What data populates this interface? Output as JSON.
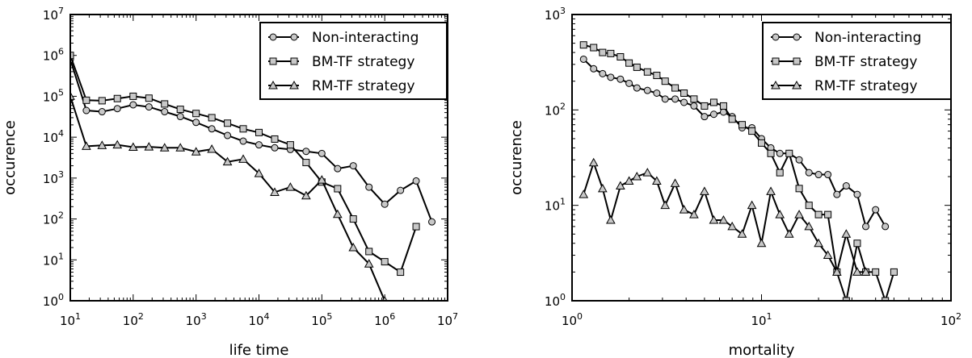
{
  "chart_data": [
    {
      "type": "line",
      "xlabel": "life time",
      "ylabel": "occurence",
      "xscale": "log",
      "yscale": "log",
      "xlim": [
        10,
        10000000
      ],
      "ylim": [
        1,
        10000000
      ],
      "x_tick_exponents": [
        "1",
        "2",
        "3",
        "4",
        "5",
        "6",
        "7"
      ],
      "y_tick_exponents": [
        "0",
        "1",
        "2",
        "3",
        "4",
        "5",
        "6",
        "7"
      ],
      "tick_base": "10",
      "legend_position": "top-right",
      "series": [
        {
          "name": "Non-interacting",
          "marker": "circle",
          "x": [
            10,
            18,
            32,
            56,
            100,
            178,
            316,
            562,
            1000,
            1780,
            3160,
            5620,
            10000,
            17800,
            31600,
            56200,
            100000,
            178000,
            316000,
            562000,
            1000000,
            1780000,
            3160000,
            5620000
          ],
          "y": [
            800000,
            45000,
            42000,
            50000,
            62000,
            55000,
            42000,
            32000,
            23000,
            16000,
            11000,
            8000,
            6500,
            5500,
            5000,
            4500,
            4000,
            1700,
            2000,
            600,
            230,
            500,
            850,
            85
          ]
        },
        {
          "name": "BM-TF strategy",
          "marker": "square",
          "x": [
            10,
            18,
            32,
            56,
            100,
            178,
            316,
            562,
            1000,
            1780,
            3160,
            5620,
            10000,
            17800,
            31600,
            56200,
            100000,
            178000,
            316000,
            562000,
            1000000,
            1780000,
            3160000
          ],
          "y": [
            1000000,
            80000,
            78000,
            88000,
            100000,
            90000,
            65000,
            48000,
            38000,
            30000,
            22000,
            16000,
            13000,
            9000,
            6500,
            2400,
            800,
            550,
            100,
            16,
            9,
            5,
            65
          ]
        },
        {
          "name": "RM-TF strategy",
          "marker": "triangle",
          "x": [
            10,
            18,
            32,
            56,
            100,
            178,
            316,
            562,
            1000,
            1780,
            3160,
            5620,
            10000,
            17800,
            31600,
            56200,
            100000,
            178000,
            316000,
            562000,
            1000000
          ],
          "y": [
            100000,
            6000,
            6300,
            6500,
            5700,
            5800,
            5500,
            5500,
            4400,
            5100,
            2500,
            2900,
            1300,
            450,
            600,
            370,
            900,
            130,
            20,
            8,
            1
          ]
        }
      ]
    },
    {
      "type": "line",
      "xlabel": "mortality",
      "ylabel": "occurence",
      "xscale": "log",
      "yscale": "log",
      "xlim": [
        1,
        100
      ],
      "ylim": [
        1,
        1000
      ],
      "x_tick_exponents": [
        "0",
        "1",
        "2"
      ],
      "y_tick_exponents": [
        "0",
        "1",
        "2",
        "3"
      ],
      "tick_base": "10",
      "legend_position": "top-right",
      "series": [
        {
          "name": "Non-interacting",
          "marker": "circle",
          "x": [
            1.15,
            1.3,
            1.45,
            1.6,
            1.8,
            2.0,
            2.2,
            2.5,
            2.8,
            3.1,
            3.5,
            3.9,
            4.4,
            5.0,
            5.6,
            6.3,
            7.0,
            7.9,
            8.9,
            10.0,
            11.2,
            12.5,
            14.0,
            15.8,
            17.8,
            20,
            22.4,
            25,
            28,
            32,
            35.5,
            40,
            45
          ],
          "y": [
            340,
            270,
            240,
            220,
            210,
            190,
            170,
            160,
            150,
            130,
            130,
            120,
            110,
            85,
            90,
            95,
            85,
            65,
            65,
            50,
            40,
            35,
            35,
            30,
            22,
            21,
            21,
            13,
            16,
            13,
            6,
            9,
            6
          ]
        },
        {
          "name": "BM-TF strategy",
          "marker": "square",
          "x": [
            1.15,
            1.3,
            1.45,
            1.6,
            1.8,
            2.0,
            2.2,
            2.5,
            2.8,
            3.1,
            3.5,
            3.9,
            4.4,
            5.0,
            5.6,
            6.3,
            7.0,
            7.9,
            8.9,
            10.0,
            11.2,
            12.5,
            14.0,
            15.8,
            17.8,
            20,
            22.4,
            25,
            28,
            32,
            35.5,
            40,
            45,
            50
          ],
          "y": [
            480,
            450,
            400,
            390,
            360,
            310,
            280,
            250,
            230,
            200,
            170,
            150,
            130,
            110,
            120,
            110,
            80,
            70,
            60,
            45,
            35,
            22,
            35,
            15,
            10,
            8,
            8,
            2,
            1,
            4,
            2,
            2,
            1,
            2
          ]
        },
        {
          "name": "RM-TF strategy",
          "marker": "triangle",
          "x": [
            1.15,
            1.3,
            1.45,
            1.6,
            1.8,
            2.0,
            2.2,
            2.5,
            2.8,
            3.1,
            3.5,
            3.9,
            4.4,
            5.0,
            5.6,
            6.3,
            7.0,
            7.9,
            8.9,
            10.0,
            11.2,
            12.5,
            14.0,
            15.8,
            17.8,
            20,
            22.4,
            25,
            28,
            32,
            35.5
          ],
          "y": [
            13,
            28,
            15,
            7,
            16,
            18,
            20,
            22,
            18,
            10,
            17,
            9,
            8,
            14,
            7,
            7,
            6,
            5,
            10,
            4,
            14,
            8,
            5,
            8,
            6,
            4,
            3,
            2,
            5,
            2,
            2
          ]
        }
      ]
    }
  ]
}
